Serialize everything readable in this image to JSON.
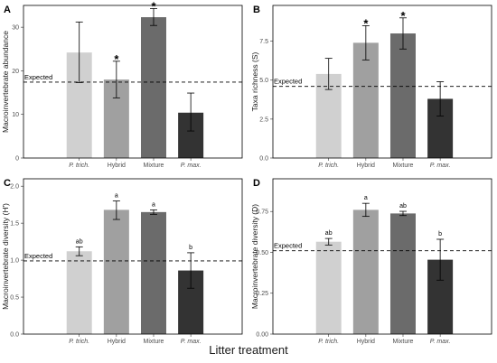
{
  "x_axis_title": "Litter treatment",
  "colors": [
    "#d0d0d0",
    "#a0a0a0",
    "#6b6b6b",
    "#333333"
  ],
  "chart_data": [
    {
      "type": "bar",
      "panel": "A",
      "categories": [
        "P. trich.",
        "Hybrid",
        "Mixture",
        "P. max."
      ],
      "values": [
        24.2,
        18.0,
        32.3,
        10.4
      ],
      "error": [
        [
          17.3,
          31.2
        ],
        [
          13.8,
          22.2
        ],
        [
          30.4,
          34.3
        ],
        [
          6.2,
          14.9
        ]
      ],
      "labels": [
        "",
        "*",
        "*",
        ""
      ],
      "expected": 17.4,
      "expected_label": "Expected",
      "ylabel": "Macroinvertebrate abundance",
      "ylim": [
        0,
        35
      ],
      "yticks": [
        0,
        10,
        20,
        30
      ],
      "ytick_labels": [
        "0",
        "10",
        "20",
        "30"
      ]
    },
    {
      "type": "bar",
      "panel": "B",
      "categories": [
        "P. trich.",
        "Hybrid",
        "Mixture",
        "P. max."
      ],
      "values": [
        5.4,
        7.4,
        8.0,
        3.8
      ],
      "error": [
        [
          4.4,
          6.4
        ],
        [
          6.3,
          8.5
        ],
        [
          7.0,
          9.0
        ],
        [
          2.7,
          4.9
        ]
      ],
      "labels": [
        "",
        "*",
        "*",
        ""
      ],
      "expected": 4.6,
      "expected_label": "Expected",
      "ylabel": "Taxa richness (S)",
      "ylim": [
        0,
        9.8
      ],
      "yticks": [
        0,
        2.5,
        5.0,
        7.5
      ],
      "ytick_labels": [
        "0.0",
        "2.5",
        "5.0",
        "7.5"
      ]
    },
    {
      "type": "bar",
      "panel": "C",
      "categories": [
        "P. trich.",
        "Hybrid",
        "Mixture",
        "P. max."
      ],
      "values": [
        1.12,
        1.68,
        1.65,
        0.86
      ],
      "error": [
        [
          1.06,
          1.18
        ],
        [
          1.55,
          1.8
        ],
        [
          1.62,
          1.68
        ],
        [
          0.62,
          1.1
        ]
      ],
      "labels": [
        "ab",
        "a",
        "a",
        "b"
      ],
      "expected": 0.99,
      "expected_label": "Expected",
      "ylabel": "Macroinvertebrate diversity (H')",
      "ylim": [
        0,
        2.1
      ],
      "yticks": [
        0,
        0.5,
        1.0,
        1.5,
        2.0
      ],
      "ytick_labels": [
        "0.0",
        "0.5",
        "1.0",
        "1.5",
        "2.0"
      ]
    },
    {
      "type": "bar",
      "panel": "D",
      "categories": [
        "P. trich.",
        "Hybrid",
        "Mixture",
        "P. max."
      ],
      "values": [
        0.565,
        0.76,
        0.738,
        0.455
      ],
      "error": [
        [
          0.545,
          0.585
        ],
        [
          0.72,
          0.8
        ],
        [
          0.725,
          0.751
        ],
        [
          0.33,
          0.58
        ]
      ],
      "labels": [
        "ab",
        "a",
        "ab",
        "b"
      ],
      "expected": 0.51,
      "expected_label": "Expected",
      "ylabel": "Macroinvertebrate diversity (D)",
      "ylim": [
        0,
        0.95
      ],
      "yticks": [
        0,
        0.25,
        0.5,
        0.75
      ],
      "ytick_labels": [
        "0.00",
        "0.25",
        "0.50",
        "0.75"
      ]
    }
  ]
}
